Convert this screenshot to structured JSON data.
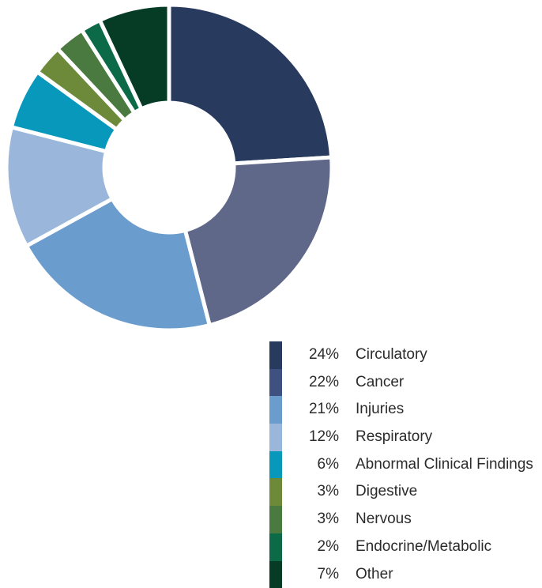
{
  "chart_data": {
    "type": "pie",
    "variant": "donut",
    "categories": [
      "Circulatory",
      "Cancer",
      "Injuries",
      "Respiratory",
      "Abnormal Clinical Findings",
      "Digestive",
      "Nervous",
      "Endocrine/Metabolic",
      "Other"
    ],
    "values": [
      24,
      22,
      21,
      12,
      6,
      3,
      3,
      2,
      7
    ],
    "value_labels": [
      "24%",
      "22%",
      "21%",
      "12%",
      "6%",
      "3%",
      "3%",
      "2%",
      "7%"
    ],
    "colors": [
      "#283a5e",
      "#5f6889",
      "#6a9ccd",
      "#9ab6db",
      "#0898bb",
      "#6d8a3a",
      "#4b7a40",
      "#0c6a48",
      "#063c26"
    ],
    "legend_colors": [
      "#283a5e",
      "#3f5180",
      "#6a9ccd",
      "#9ab6db",
      "#0898bb",
      "#6d8a3a",
      "#4b7a40",
      "#0c6a48",
      "#063c26"
    ],
    "legend_position": "bottom-right",
    "start_angle": "12 o'clock",
    "direction": "clockwise"
  }
}
